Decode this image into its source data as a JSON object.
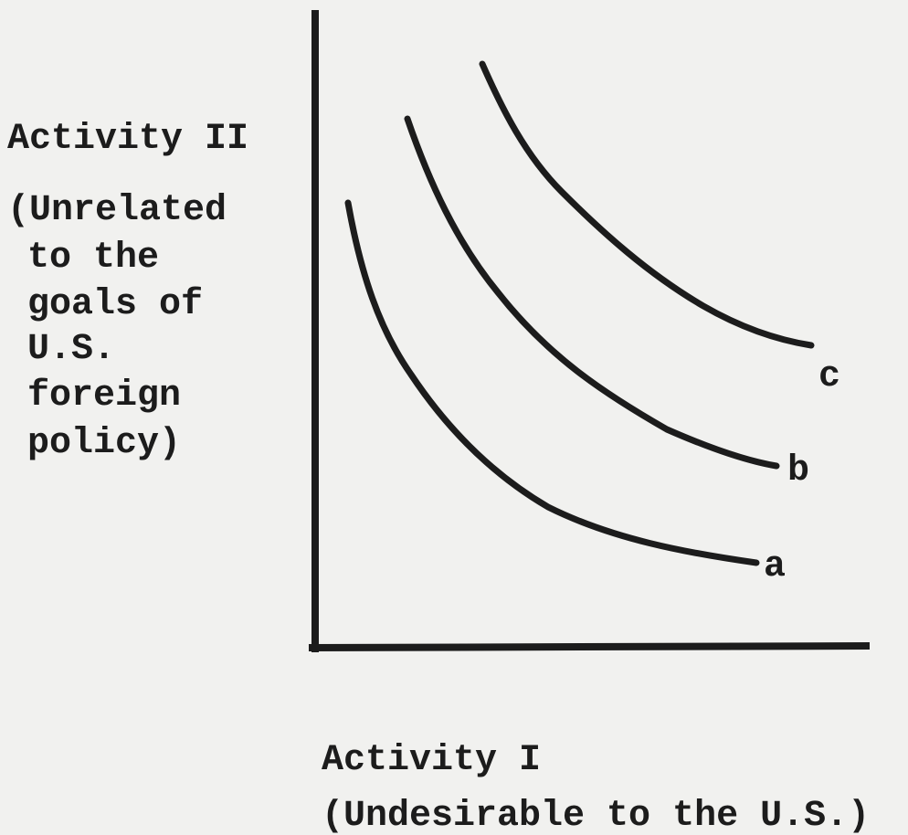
{
  "y_axis": {
    "title": "Activity II",
    "note_lines": [
      "(Unrelated",
      "to the",
      "goals of",
      "U.S.",
      "foreign",
      "policy)"
    ]
  },
  "x_axis": {
    "title": "Activity I",
    "note": "(Undesirable to the U.S.)"
  },
  "curves": [
    {
      "label": "a"
    },
    {
      "label": "b"
    },
    {
      "label": "c"
    }
  ]
}
